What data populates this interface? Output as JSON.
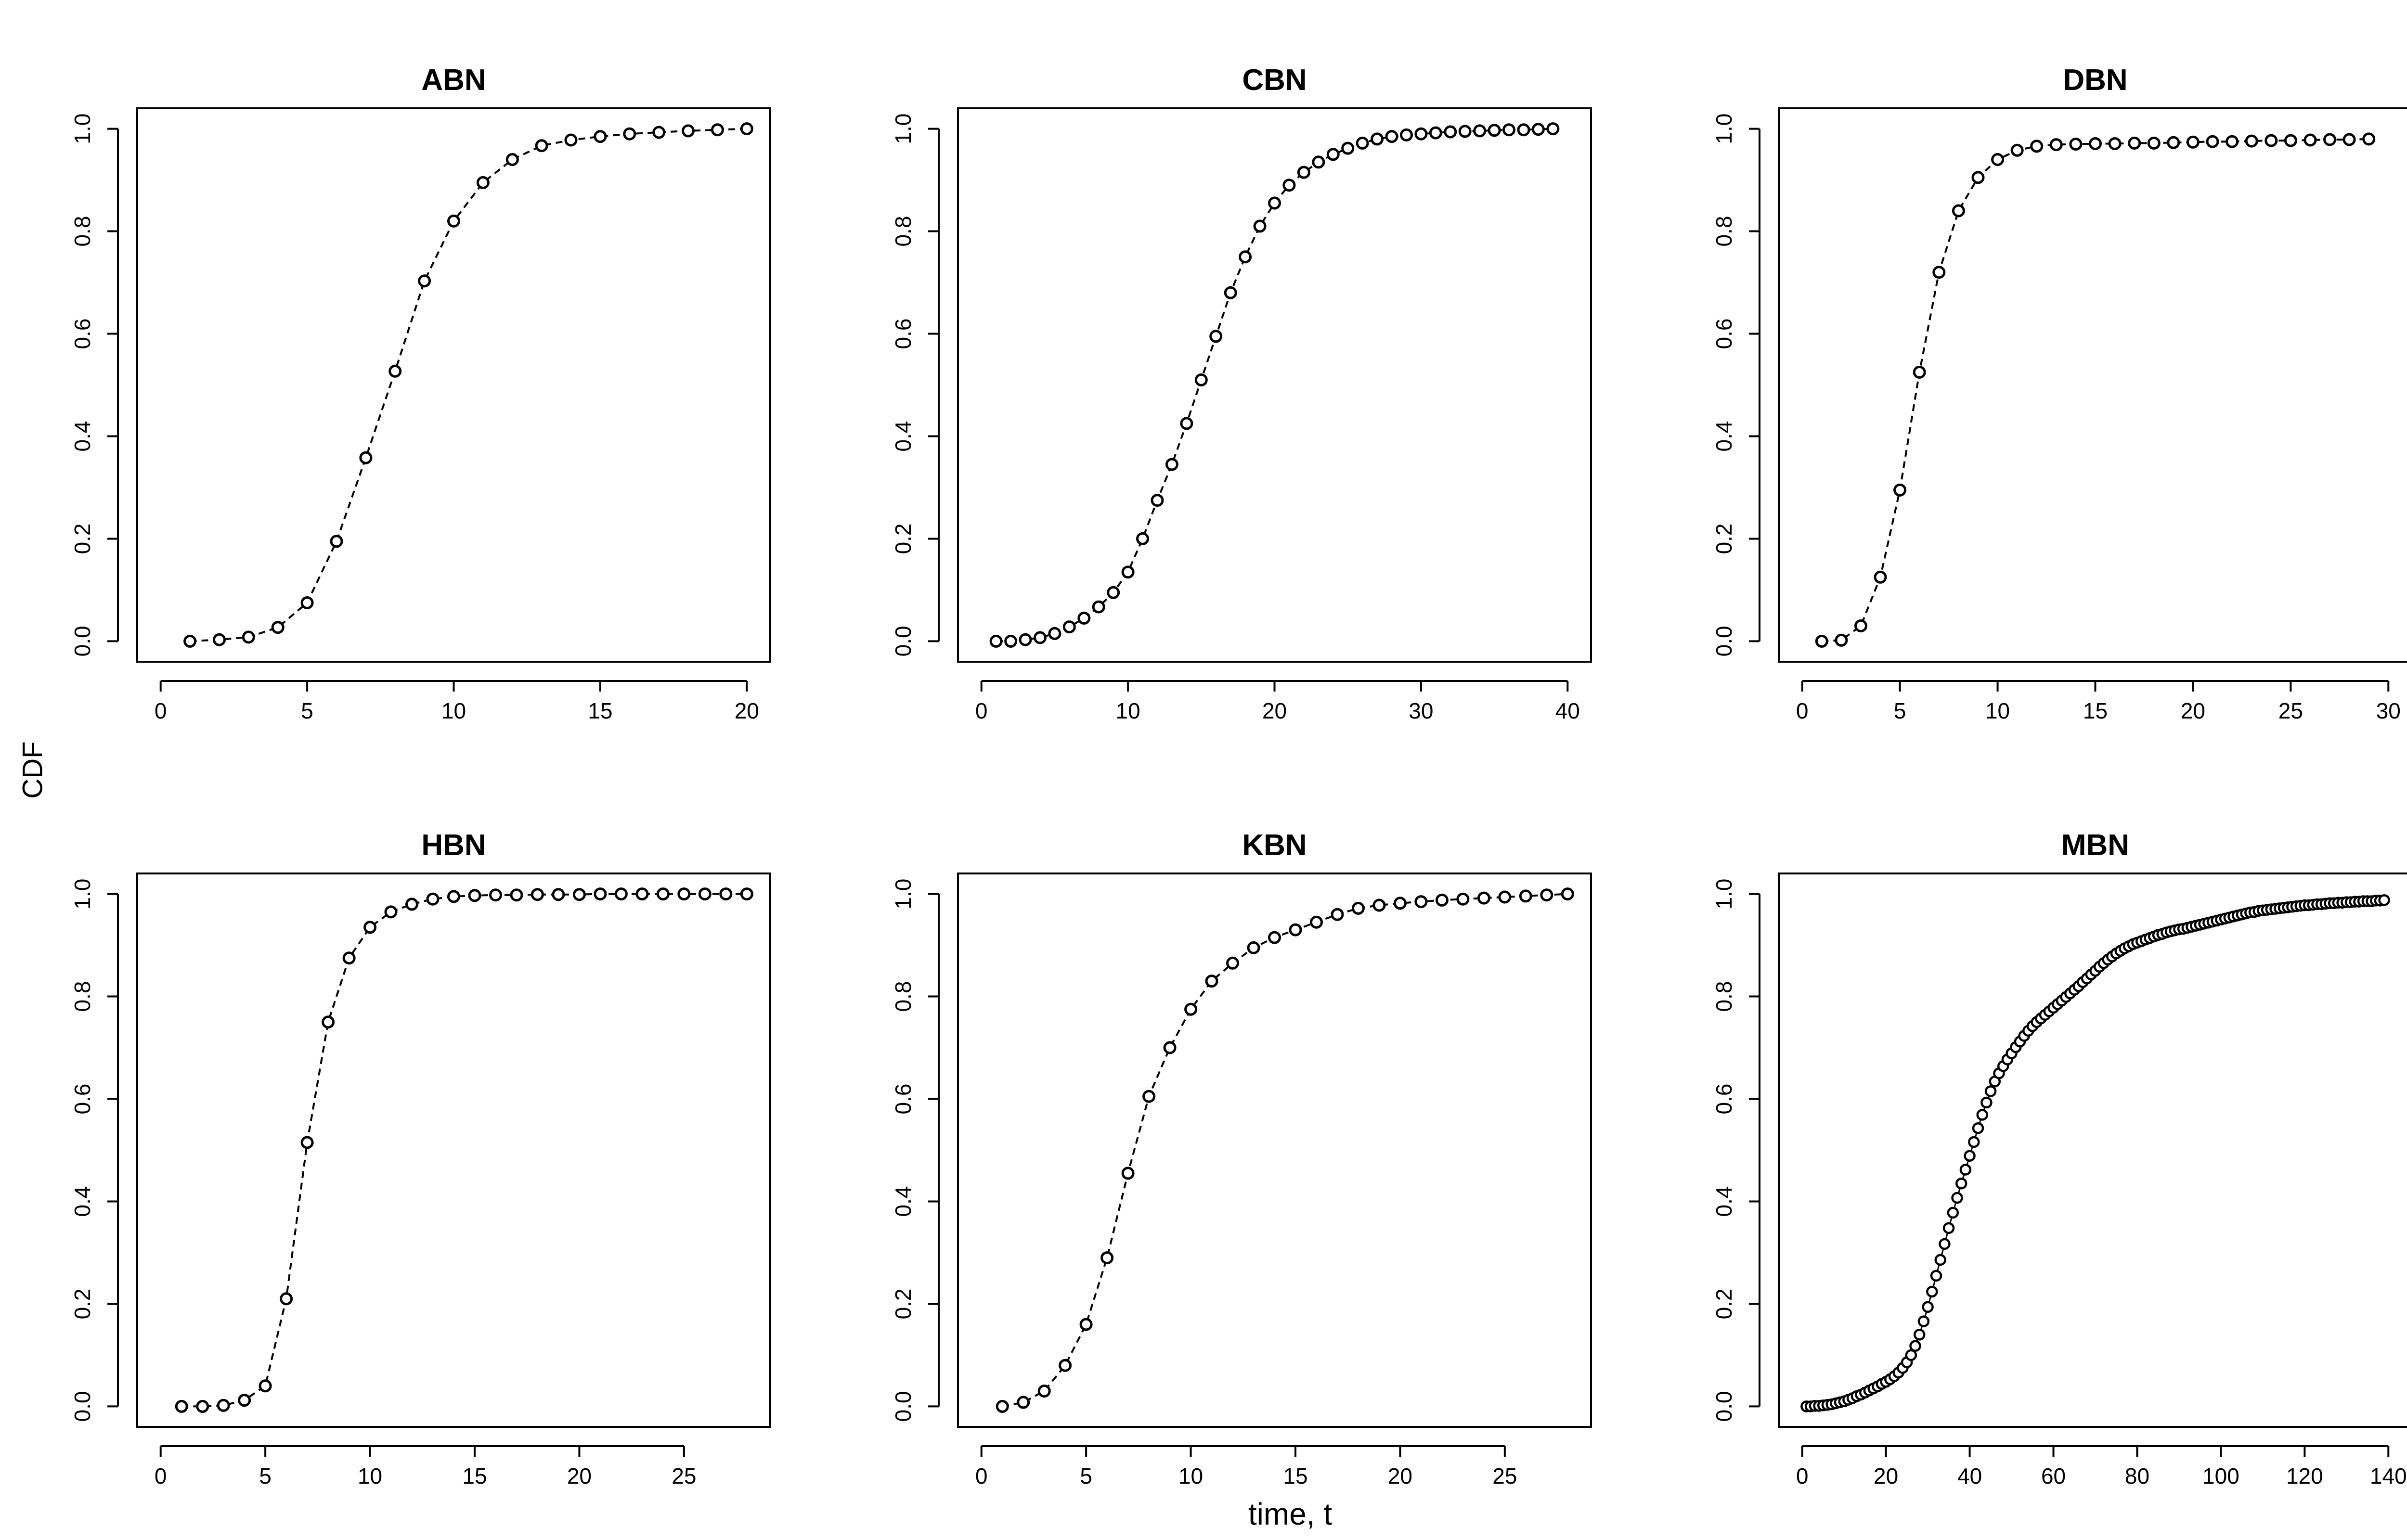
{
  "figure": {
    "ylabel": "CDF",
    "xlabel": "time, t"
  },
  "colors": {
    "ink": "#000000",
    "background": "#ffffff"
  },
  "chart_data": [
    {
      "type": "line",
      "title": "ABN",
      "xlabel": "time, t",
      "ylabel": "CDF",
      "xlim": [
        0,
        20
      ],
      "ylim": [
        0,
        1
      ],
      "xticks": [
        0,
        5,
        10,
        15,
        20
      ],
      "yticks": [
        0.0,
        0.2,
        0.4,
        0.6,
        0.8,
        1.0
      ],
      "marker": "open-circle",
      "series": [
        {
          "name": "ABN",
          "x": [
            1,
            2,
            3,
            4,
            5,
            6,
            7,
            8,
            9,
            10,
            11,
            12,
            13,
            14,
            15,
            16,
            17,
            18,
            19,
            20
          ],
          "y": [
            0.0,
            0.003,
            0.008,
            0.027,
            0.075,
            0.195,
            0.358,
            0.527,
            0.703,
            0.82,
            0.895,
            0.94,
            0.967,
            0.978,
            0.985,
            0.99,
            0.993,
            0.996,
            0.998,
            1.0
          ]
        }
      ]
    },
    {
      "type": "line",
      "title": "CBN",
      "xlabel": "time, t",
      "ylabel": "CDF",
      "xlim": [
        0,
        40
      ],
      "ylim": [
        0,
        1
      ],
      "xticks": [
        0,
        10,
        20,
        30,
        40
      ],
      "yticks": [
        0.0,
        0.2,
        0.4,
        0.6,
        0.8,
        1.0
      ],
      "marker": "open-circle",
      "series": [
        {
          "name": "CBN",
          "x": [
            1,
            2,
            3,
            4,
            5,
            6,
            7,
            8,
            9,
            10,
            11,
            12,
            13,
            14,
            15,
            16,
            17,
            18,
            19,
            20,
            21,
            22,
            23,
            24,
            25,
            26,
            27,
            28,
            29,
            30,
            31,
            32,
            33,
            34,
            35,
            36,
            37,
            38,
            39
          ],
          "y": [
            0.0,
            0.0,
            0.003,
            0.007,
            0.015,
            0.028,
            0.045,
            0.067,
            0.095,
            0.135,
            0.2,
            0.275,
            0.345,
            0.425,
            0.51,
            0.595,
            0.68,
            0.75,
            0.81,
            0.855,
            0.89,
            0.915,
            0.935,
            0.95,
            0.962,
            0.972,
            0.98,
            0.985,
            0.988,
            0.99,
            0.992,
            0.994,
            0.995,
            0.996,
            0.997,
            0.998,
            0.998,
            0.999,
            1.0
          ]
        }
      ]
    },
    {
      "type": "line",
      "title": "DBN",
      "xlabel": "time, t",
      "ylabel": "CDF",
      "xlim": [
        0,
        30
      ],
      "ylim": [
        0,
        1
      ],
      "xticks": [
        0,
        5,
        10,
        15,
        20,
        25,
        30
      ],
      "yticks": [
        0.0,
        0.2,
        0.4,
        0.6,
        0.8,
        1.0
      ],
      "marker": "open-circle",
      "series": [
        {
          "name": "DBN",
          "x": [
            1,
            2,
            3,
            4,
            5,
            6,
            7,
            8,
            9,
            10,
            11,
            12,
            13,
            14,
            15,
            16,
            17,
            18,
            19,
            20,
            21,
            22,
            23,
            24,
            25,
            26,
            27,
            28,
            29
          ],
          "y": [
            0.0,
            0.002,
            0.03,
            0.125,
            0.295,
            0.525,
            0.72,
            0.84,
            0.905,
            0.94,
            0.958,
            0.966,
            0.969,
            0.97,
            0.971,
            0.971,
            0.972,
            0.972,
            0.973,
            0.974,
            0.975,
            0.975,
            0.976,
            0.977,
            0.977,
            0.978,
            0.979,
            0.979,
            0.98
          ]
        }
      ]
    },
    {
      "type": "line",
      "title": "HBN",
      "xlabel": "time, t",
      "ylabel": "CDF",
      "xlim": [
        0,
        28
      ],
      "ylim": [
        0,
        1
      ],
      "xticks": [
        0,
        5,
        10,
        15,
        20,
        25
      ],
      "yticks": [
        0.0,
        0.2,
        0.4,
        0.6,
        0.8,
        1.0
      ],
      "marker": "open-circle",
      "series": [
        {
          "name": "HBN",
          "x": [
            1,
            2,
            3,
            4,
            5,
            6,
            7,
            8,
            9,
            10,
            11,
            12,
            13,
            14,
            15,
            16,
            17,
            18,
            19,
            20,
            21,
            22,
            23,
            24,
            25,
            26,
            27,
            28
          ],
          "y": [
            0.0,
            0.0,
            0.002,
            0.012,
            0.04,
            0.21,
            0.515,
            0.75,
            0.875,
            0.935,
            0.965,
            0.98,
            0.99,
            0.995,
            0.997,
            0.998,
            0.998,
            0.999,
            0.999,
            0.999,
            1.0,
            1.0,
            1.0,
            1.0,
            1.0,
            1.0,
            1.0,
            1.0
          ]
        }
      ]
    },
    {
      "type": "line",
      "title": "KBN",
      "xlabel": "time, t",
      "ylabel": "CDF",
      "xlim": [
        0,
        28
      ],
      "ylim": [
        0,
        1
      ],
      "xticks": [
        0,
        5,
        10,
        15,
        20,
        25
      ],
      "yticks": [
        0.0,
        0.2,
        0.4,
        0.6,
        0.8,
        1.0
      ],
      "marker": "open-circle",
      "series": [
        {
          "name": "KBN",
          "x": [
            1,
            2,
            3,
            4,
            5,
            6,
            7,
            8,
            9,
            10,
            11,
            12,
            13,
            14,
            15,
            16,
            17,
            18,
            19,
            20,
            21,
            22,
            23,
            24,
            25,
            26,
            27,
            28
          ],
          "y": [
            0.0,
            0.008,
            0.03,
            0.08,
            0.16,
            0.29,
            0.455,
            0.605,
            0.7,
            0.775,
            0.83,
            0.865,
            0.895,
            0.915,
            0.93,
            0.945,
            0.96,
            0.972,
            0.978,
            0.982,
            0.985,
            0.988,
            0.99,
            0.992,
            0.994,
            0.996,
            0.998,
            1.0
          ]
        }
      ]
    },
    {
      "type": "line",
      "title": "MBN",
      "xlabel": "time, t",
      "ylabel": "CDF",
      "xlim": [
        0,
        140
      ],
      "ylim": [
        0,
        1
      ],
      "xticks": [
        0,
        20,
        40,
        60,
        80,
        100,
        120,
        140
      ],
      "yticks": [
        0.0,
        0.2,
        0.4,
        0.6,
        0.8,
        1.0
      ],
      "marker": "open-circle",
      "series": [
        {
          "name": "MBN",
          "x": [
            1,
            2,
            3,
            4,
            5,
            6,
            7,
            8,
            9,
            10,
            11,
            12,
            13,
            14,
            15,
            16,
            17,
            18,
            19,
            20,
            21,
            22,
            23,
            24,
            25,
            26,
            27,
            28,
            29,
            30,
            31,
            32,
            33,
            34,
            35,
            36,
            37,
            38,
            39,
            40,
            41,
            42,
            43,
            44,
            45,
            46,
            47,
            48,
            49,
            50,
            51,
            52,
            53,
            54,
            55,
            56,
            57,
            58,
            59,
            60,
            61,
            62,
            63,
            64,
            65,
            66,
            67,
            68,
            69,
            70,
            71,
            72,
            73,
            74,
            75,
            76,
            77,
            78,
            79,
            80,
            81,
            82,
            83,
            84,
            85,
            86,
            87,
            88,
            89,
            90,
            91,
            92,
            93,
            94,
            95,
            96,
            97,
            98,
            99,
            100,
            101,
            102,
            103,
            104,
            105,
            106,
            107,
            108,
            109,
            110,
            111,
            112,
            113,
            114,
            115,
            116,
            117,
            118,
            119,
            120,
            121,
            122,
            123,
            124,
            125,
            126,
            127,
            128,
            129,
            130,
            131,
            132,
            133,
            134,
            135,
            136,
            137,
            138,
            139
          ],
          "y": [
            0.0,
            0.0,
            0.001,
            0.001,
            0.002,
            0.003,
            0.004,
            0.006,
            0.008,
            0.01,
            0.013,
            0.016,
            0.02,
            0.023,
            0.027,
            0.031,
            0.035,
            0.039,
            0.044,
            0.048,
            0.053,
            0.059,
            0.066,
            0.075,
            0.086,
            0.1,
            0.118,
            0.14,
            0.166,
            0.194,
            0.224,
            0.255,
            0.286,
            0.317,
            0.348,
            0.378,
            0.407,
            0.435,
            0.462,
            0.489,
            0.516,
            0.543,
            0.569,
            0.593,
            0.615,
            0.634,
            0.65,
            0.664,
            0.677,
            0.689,
            0.701,
            0.712,
            0.723,
            0.733,
            0.742,
            0.75,
            0.757,
            0.764,
            0.771,
            0.778,
            0.785,
            0.792,
            0.799,
            0.806,
            0.813,
            0.82,
            0.828,
            0.835,
            0.843,
            0.85,
            0.858,
            0.865,
            0.872,
            0.878,
            0.884,
            0.889,
            0.894,
            0.898,
            0.902,
            0.905,
            0.908,
            0.911,
            0.914,
            0.917,
            0.92,
            0.922,
            0.925,
            0.927,
            0.929,
            0.931,
            0.932,
            0.934,
            0.936,
            0.938,
            0.94,
            0.942,
            0.944,
            0.946,
            0.948,
            0.95,
            0.952,
            0.954,
            0.956,
            0.958,
            0.96,
            0.962,
            0.964,
            0.965,
            0.967,
            0.968,
            0.969,
            0.97,
            0.971,
            0.972,
            0.973,
            0.974,
            0.975,
            0.976,
            0.977,
            0.978,
            0.978,
            0.979,
            0.98,
            0.98,
            0.981,
            0.982,
            0.982,
            0.983,
            0.983,
            0.984,
            0.984,
            0.985,
            0.985,
            0.986,
            0.986,
            0.986,
            0.987,
            0.987,
            0.988
          ]
        }
      ]
    }
  ]
}
